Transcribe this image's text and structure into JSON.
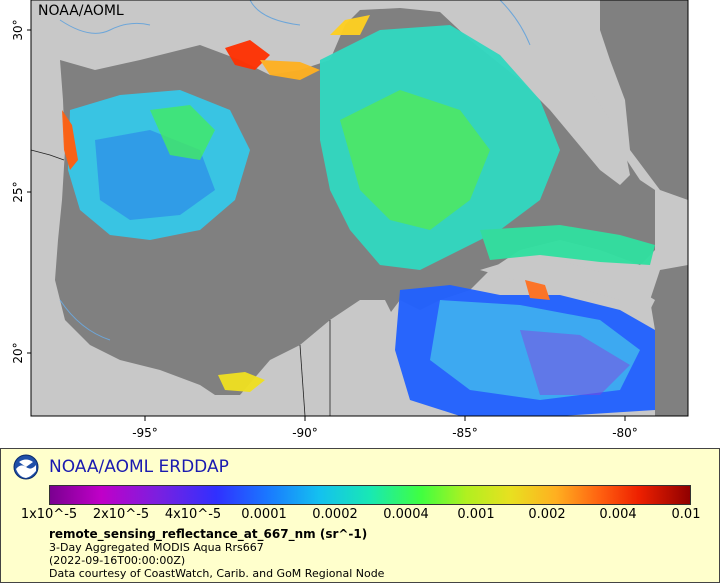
{
  "map": {
    "provider_tag": "NOAA/AOML",
    "lat_ticks": [
      "30°",
      "25°",
      "20°"
    ],
    "lon_ticks": [
      "-95°",
      "-90°",
      "-85°",
      "-80°"
    ],
    "colors": {
      "land": "#c8c8c8",
      "ocean_nodata": "#808080",
      "border": "#222222",
      "rivers": "#6da6d9"
    }
  },
  "legend": {
    "logo_icon": "noaa-logo-icon",
    "title": "NOAA/AOML ERDDAP",
    "colorbar_ticks": [
      "1x10^-5",
      "2x10^-5",
      "4x10^-5",
      "0.0001",
      "0.0002",
      "0.0004",
      "0.001",
      "0.002",
      "0.004",
      "0.01"
    ],
    "variable": "remote_sensing_reflectance_at_667_nm (sr^-1)",
    "dataset": "3-Day Aggregated MODIS Aqua Rrs667",
    "time": "(2022-09-16T00:00:00Z)",
    "credit": "Data courtesy of CoastWatch, Carib. and GoM Regional Node"
  }
}
